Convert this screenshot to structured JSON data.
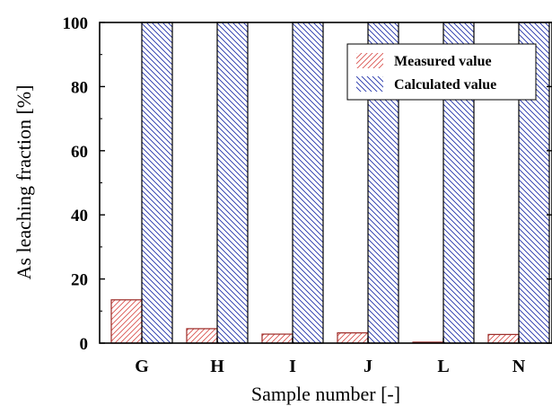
{
  "chart_data": {
    "type": "bar",
    "title": "",
    "xlabel": "Sample number [-]",
    "ylabel": "As leaching fraction [%]",
    "categories": [
      "G",
      "H",
      "I",
      "J",
      "L",
      "N"
    ],
    "series": [
      {
        "name": "Measured value",
        "values": [
          13.5,
          4.5,
          2.8,
          3.2,
          0.3,
          2.7
        ]
      },
      {
        "name": "Calculated value",
        "values": [
          100,
          100,
          100,
          100,
          100,
          100
        ]
      }
    ],
    "ylim": [
      0,
      100
    ],
    "yticks": [
      "0",
      "20",
      "40",
      "60",
      "80",
      "100"
    ],
    "grid": false,
    "legend_position": "top-right",
    "colors": {
      "measured": "#d9534f",
      "calculated": "#1e2fa8"
    }
  }
}
